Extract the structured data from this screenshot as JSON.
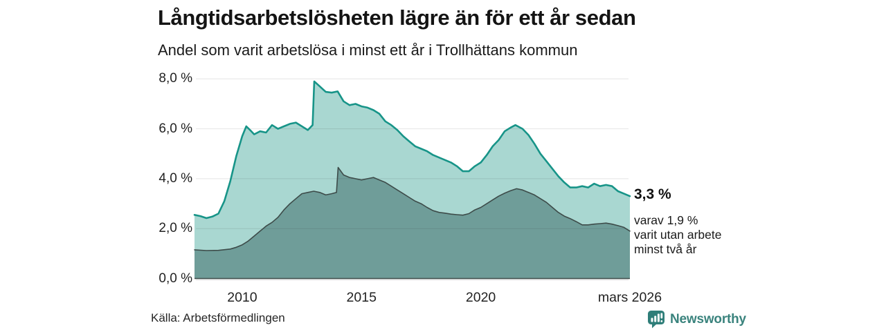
{
  "header": {
    "title": "Långtidsarbetslösheten lägre än för ett år sedan",
    "subtitle": "Andel som varit arbetslösa i minst ett år i Trollhättans kommun"
  },
  "chart_data": {
    "type": "area",
    "title": "Långtidsarbetslösheten lägre än för ett år sedan",
    "subtitle": "Andel som varit arbetslösa i minst ett år i Trollhättans kommun",
    "unit": "%",
    "xlim": [
      2008,
      2026.25
    ],
    "ylim": [
      0,
      8
    ],
    "yticks": [
      0,
      2,
      4,
      6,
      8
    ],
    "ytick_labels": [
      "0,0 %",
      "2,0 %",
      "4,0 %",
      "6,0 %",
      "8,0 %"
    ],
    "xticks": [
      2010,
      2015,
      2020,
      2026.25
    ],
    "xtick_labels": [
      "2010",
      "2015",
      "2020",
      "mars 2026"
    ],
    "grid": true,
    "legend": "none",
    "series": [
      {
        "name": "Arbetslösa minst ett år",
        "line_color": "#179488",
        "fill_color": "#a9d7d1",
        "latest_value": 3.3,
        "points": [
          [
            2008,
            2.55
          ],
          [
            2008.25,
            2.5
          ],
          [
            2008.5,
            2.42
          ],
          [
            2008.75,
            2.48
          ],
          [
            2009,
            2.6
          ],
          [
            2009.25,
            3.1
          ],
          [
            2009.5,
            3.9
          ],
          [
            2009.75,
            4.9
          ],
          [
            2010,
            5.7
          ],
          [
            2010.17,
            6.1
          ],
          [
            2010.33,
            5.95
          ],
          [
            2010.5,
            5.78
          ],
          [
            2010.75,
            5.9
          ],
          [
            2011,
            5.85
          ],
          [
            2011.25,
            6.15
          ],
          [
            2011.5,
            6.0
          ],
          [
            2011.75,
            6.1
          ],
          [
            2012,
            6.2
          ],
          [
            2012.25,
            6.25
          ],
          [
            2012.5,
            6.1
          ],
          [
            2012.75,
            5.95
          ],
          [
            2012.95,
            6.15
          ],
          [
            2013.02,
            7.9
          ],
          [
            2013.25,
            7.7
          ],
          [
            2013.5,
            7.48
          ],
          [
            2013.75,
            7.45
          ],
          [
            2014,
            7.5
          ],
          [
            2014.25,
            7.1
          ],
          [
            2014.5,
            6.95
          ],
          [
            2014.75,
            7.0
          ],
          [
            2015,
            6.9
          ],
          [
            2015.25,
            6.85
          ],
          [
            2015.5,
            6.75
          ],
          [
            2015.75,
            6.6
          ],
          [
            2016,
            6.3
          ],
          [
            2016.25,
            6.15
          ],
          [
            2016.5,
            5.95
          ],
          [
            2016.75,
            5.7
          ],
          [
            2017,
            5.5
          ],
          [
            2017.25,
            5.3
          ],
          [
            2017.5,
            5.2
          ],
          [
            2017.75,
            5.1
          ],
          [
            2018,
            4.95
          ],
          [
            2018.25,
            4.85
          ],
          [
            2018.5,
            4.75
          ],
          [
            2018.75,
            4.65
          ],
          [
            2019,
            4.5
          ],
          [
            2019.25,
            4.3
          ],
          [
            2019.5,
            4.3
          ],
          [
            2019.75,
            4.5
          ],
          [
            2020,
            4.65
          ],
          [
            2020.25,
            4.95
          ],
          [
            2020.5,
            5.3
          ],
          [
            2020.75,
            5.55
          ],
          [
            2021,
            5.9
          ],
          [
            2021.25,
            6.05
          ],
          [
            2021.45,
            6.15
          ],
          [
            2021.75,
            6.0
          ],
          [
            2022,
            5.75
          ],
          [
            2022.25,
            5.4
          ],
          [
            2022.5,
            5.0
          ],
          [
            2022.75,
            4.7
          ],
          [
            2023,
            4.4
          ],
          [
            2023.25,
            4.1
          ],
          [
            2023.5,
            3.85
          ],
          [
            2023.75,
            3.65
          ],
          [
            2024,
            3.65
          ],
          [
            2024.25,
            3.7
          ],
          [
            2024.5,
            3.65
          ],
          [
            2024.75,
            3.8
          ],
          [
            2025,
            3.7
          ],
          [
            2025.25,
            3.75
          ],
          [
            2025.5,
            3.7
          ],
          [
            2025.75,
            3.5
          ],
          [
            2026,
            3.4
          ],
          [
            2026.25,
            3.3
          ]
        ]
      },
      {
        "name": "Utan arbete minst två år",
        "line_color": "#3d4b49",
        "fill_color": "#6f9d99",
        "latest_value": 1.9,
        "points": [
          [
            2008,
            1.15
          ],
          [
            2008.5,
            1.12
          ],
          [
            2009,
            1.13
          ],
          [
            2009.5,
            1.18
          ],
          [
            2009.75,
            1.25
          ],
          [
            2010,
            1.35
          ],
          [
            2010.25,
            1.5
          ],
          [
            2010.5,
            1.7
          ],
          [
            2010.75,
            1.9
          ],
          [
            2011,
            2.1
          ],
          [
            2011.25,
            2.25
          ],
          [
            2011.5,
            2.45
          ],
          [
            2011.75,
            2.75
          ],
          [
            2012,
            3.0
          ],
          [
            2012.25,
            3.2
          ],
          [
            2012.5,
            3.4
          ],
          [
            2012.75,
            3.45
          ],
          [
            2013,
            3.5
          ],
          [
            2013.25,
            3.45
          ],
          [
            2013.5,
            3.35
          ],
          [
            2013.75,
            3.4
          ],
          [
            2013.95,
            3.45
          ],
          [
            2014.02,
            4.45
          ],
          [
            2014.25,
            4.15
          ],
          [
            2014.5,
            4.05
          ],
          [
            2014.75,
            4.0
          ],
          [
            2015,
            3.95
          ],
          [
            2015.25,
            4.0
          ],
          [
            2015.5,
            4.05
          ],
          [
            2015.75,
            3.95
          ],
          [
            2016,
            3.85
          ],
          [
            2016.25,
            3.7
          ],
          [
            2016.5,
            3.55
          ],
          [
            2016.75,
            3.4
          ],
          [
            2017,
            3.25
          ],
          [
            2017.25,
            3.1
          ],
          [
            2017.5,
            3.0
          ],
          [
            2017.75,
            2.85
          ],
          [
            2018,
            2.72
          ],
          [
            2018.25,
            2.65
          ],
          [
            2018.5,
            2.62
          ],
          [
            2018.75,
            2.58
          ],
          [
            2019,
            2.56
          ],
          [
            2019.25,
            2.54
          ],
          [
            2019.5,
            2.6
          ],
          [
            2019.75,
            2.75
          ],
          [
            2020,
            2.85
          ],
          [
            2020.25,
            3.0
          ],
          [
            2020.5,
            3.15
          ],
          [
            2020.75,
            3.3
          ],
          [
            2021,
            3.42
          ],
          [
            2021.25,
            3.52
          ],
          [
            2021.5,
            3.6
          ],
          [
            2021.75,
            3.55
          ],
          [
            2022,
            3.45
          ],
          [
            2022.25,
            3.35
          ],
          [
            2022.5,
            3.2
          ],
          [
            2022.75,
            3.05
          ],
          [
            2023,
            2.85
          ],
          [
            2023.25,
            2.65
          ],
          [
            2023.5,
            2.5
          ],
          [
            2023.75,
            2.4
          ],
          [
            2024,
            2.28
          ],
          [
            2024.25,
            2.15
          ],
          [
            2024.5,
            2.15
          ],
          [
            2024.75,
            2.18
          ],
          [
            2025,
            2.2
          ],
          [
            2025.25,
            2.22
          ],
          [
            2025.5,
            2.18
          ],
          [
            2025.75,
            2.12
          ],
          [
            2026,
            2.05
          ],
          [
            2026.25,
            1.9
          ]
        ]
      }
    ],
    "annotations": {
      "latest_total": "3,3 %",
      "latest_detail_lines": [
        "varav 1,9 %",
        "varit utan arbete",
        "minst två år"
      ]
    }
  },
  "footer": {
    "source": "Källa: Arbetsförmedlingen",
    "brand": "Newsworthy"
  },
  "colors": {
    "accent_teal": "#179488",
    "light_fill": "#a9d7d1",
    "dark_fill": "#6f9d99",
    "dark_line": "#3d4b49",
    "gridline": "#e1e1e1",
    "brand_teal": "#3a837d"
  }
}
